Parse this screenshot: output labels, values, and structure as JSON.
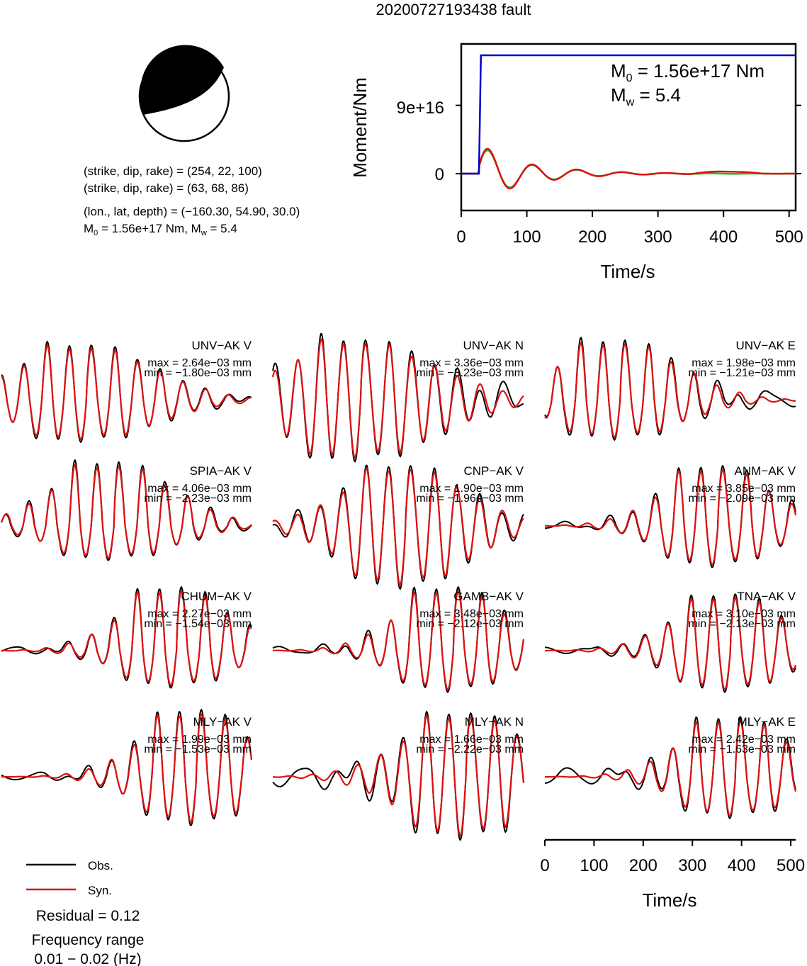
{
  "title": "20200727193438 fault",
  "focal": {
    "line1": "(strike, dip, rake) = (254, 22, 100)",
    "line2": "(strike, dip, rake) = (63, 68, 86)",
    "line3": "(lon., lat, depth) = (−160.30, 54.90, 30.0)",
    "line4_prefix": "M",
    "line4_sub": "0",
    "line4_rest": " = 1.56e+17 Nm, M",
    "line4_sub2": "w",
    "line4_end": " = 5.4"
  },
  "moment_panel": {
    "ylabel": "Moment/Nm",
    "xlabel": "Time/s",
    "yticks": [
      "9e+16",
      "0"
    ],
    "xticks": [
      "0",
      "100",
      "200",
      "300",
      "400",
      "500"
    ],
    "m0_label": "M",
    "m0_sub": "0",
    "m0_value": " = 1.56e+17 Nm",
    "mw_label": "M",
    "mw_sub": "w",
    "mw_value": " = 5.4"
  },
  "chart_data": {
    "type": "line",
    "moment_rate": {
      "x_range": [
        0,
        510
      ],
      "y_unit": "Nm",
      "step_value": 1.56e+17,
      "step_time": 30,
      "ytick_values": [
        9e+16,
        0
      ]
    },
    "waveform_axis": {
      "xlabel": "Time/s",
      "xticks": [
        "0",
        "100",
        "200",
        "300",
        "400",
        "500"
      ],
      "x_range": [
        0,
        510
      ]
    },
    "stations": [
      {
        "name": "UNV−AK V",
        "max": "max = 2.64e−03 mm",
        "min": "min = −1.80e−03 mm"
      },
      {
        "name": "UNV−AK N",
        "max": "max = 3.36e−03 mm",
        "min": "min = −3.23e−03 mm"
      },
      {
        "name": "UNV−AK E",
        "max": "max = 1.98e−03 mm",
        "min": "min = −1.21e−03 mm"
      },
      {
        "name": "SPIA−AK V",
        "max": "max = 4.06e−03 mm",
        "min": "min = −2.23e−03 mm"
      },
      {
        "name": "CNP−AK V",
        "max": "max = 1.90e−03 mm",
        "min": "min = −1.96e−03 mm"
      },
      {
        "name": "ANM−AK V",
        "max": "max = 3.85e−03 mm",
        "min": "min = −2.09e−03 mm"
      },
      {
        "name": "CHUM−AK V",
        "max": "max = 2.27e−03 mm",
        "min": "min = −1.54e−03 mm"
      },
      {
        "name": "GAMB−AK V",
        "max": "max = 3.48e−03 mm",
        "min": "min = −2.12e−03 mm"
      },
      {
        "name": "TNA−AK V",
        "max": "max = 3.10e−03 mm",
        "min": "min = −2.13e−03 mm"
      },
      {
        "name": "MLY−AK V",
        "max": "max = 1.99e−03 mm",
        "min": "min = −1.53e−03 mm"
      },
      {
        "name": "MLY−AK N",
        "max": "max = 1.66e−03 mm",
        "min": "min = −2.22e−03 mm"
      },
      {
        "name": "MLY−AK E",
        "max": "max = 2.42e−03 mm",
        "min": "min = −1.63e−03 mm"
      }
    ],
    "legend": [
      {
        "name": "Obs.",
        "color": "#000000"
      },
      {
        "name": "Syn.",
        "color": "#dd1111"
      }
    ]
  },
  "residual": "Residual = 0.12",
  "freq_label": "Frequency range",
  "freq_value": "0.01 − 0.02 (Hz)",
  "colors": {
    "observed": "#000000",
    "synthetic": "#dd1111",
    "moment_step": "#0000cc",
    "moment_green": "#22bb22"
  }
}
